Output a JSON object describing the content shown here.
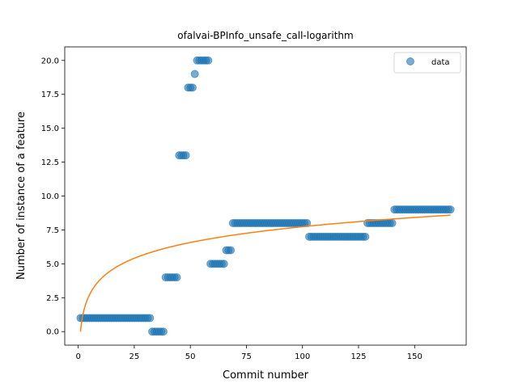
{
  "chart_data": {
    "type": "scatter",
    "title": "ofalvai-BPInfo_unsafe_call-logarithm",
    "xlabel": "Commit number",
    "ylabel": "Number of instance of a feature",
    "xlim": [
      -6,
      173
    ],
    "ylim": [
      -1,
      21
    ],
    "xticks": [
      0,
      25,
      50,
      75,
      100,
      125,
      150
    ],
    "yticks": [
      0.0,
      2.5,
      5.0,
      7.5,
      10.0,
      12.5,
      15.0,
      17.5,
      20.0
    ],
    "ytick_labels": [
      "0.0",
      "2.5",
      "5.0",
      "7.5",
      "10.0",
      "12.5",
      "15.0",
      "17.5",
      "20.0"
    ],
    "grid": false,
    "legend": {
      "position": "top-right",
      "entries": [
        "data"
      ]
    },
    "colors": {
      "points": "#1f77b4",
      "fit": "#ff7f0e"
    },
    "point_runs": [
      {
        "x_start": 1,
        "x_end": 32,
        "y": 1
      },
      {
        "x_start": 33,
        "x_end": 38,
        "y": 0
      },
      {
        "x_start": 39,
        "x_end": 44,
        "y": 4
      },
      {
        "x_start": 45,
        "x_end": 48,
        "y": 13
      },
      {
        "x_start": 49,
        "x_end": 51,
        "y": 18
      },
      {
        "x_start": 52,
        "x_end": 52,
        "y": 19
      },
      {
        "x_start": 53,
        "x_end": 58,
        "y": 20
      },
      {
        "x_start": 59,
        "x_end": 65,
        "y": 5
      },
      {
        "x_start": 66,
        "x_end": 68,
        "y": 6
      },
      {
        "x_start": 69,
        "x_end": 102,
        "y": 8
      },
      {
        "x_start": 103,
        "x_end": 128,
        "y": 7
      },
      {
        "x_start": 129,
        "x_end": 140,
        "y": 8
      },
      {
        "x_start": 141,
        "x_end": 166,
        "y": 9
      }
    ],
    "fit": {
      "series": "logarithmic fit",
      "a": 0.0,
      "b": 1.68,
      "x_start": 1,
      "x_end": 166
    }
  }
}
